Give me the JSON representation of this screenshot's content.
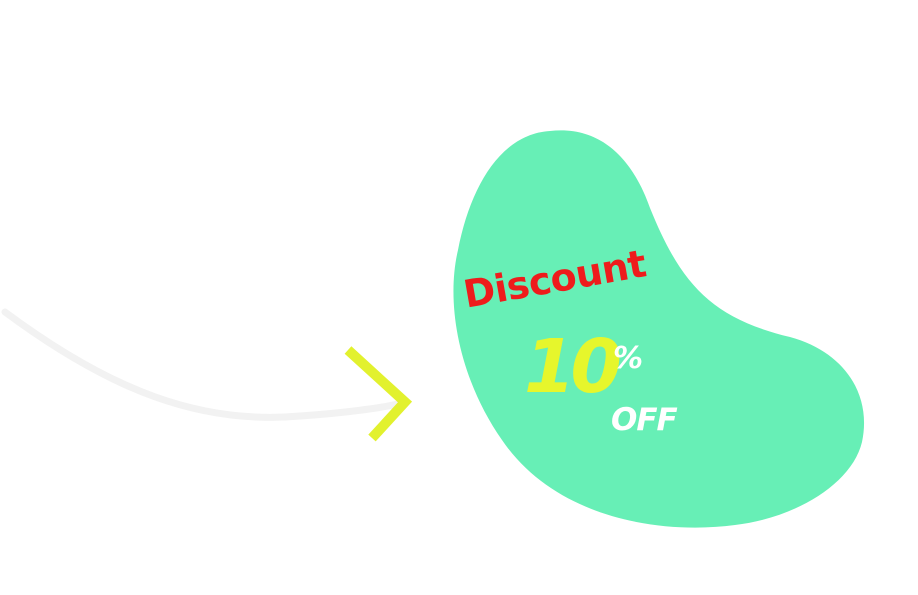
{
  "promo": {
    "headline": "Discount",
    "amount": "10",
    "percent_sign": "%",
    "suffix": "OFF"
  },
  "colors": {
    "background": "#ffffff",
    "blob": "#67efb6",
    "headline": "#ee1c1c",
    "amount": "#e6f62c",
    "suffix": "#ffffff",
    "arrow_head": "#e2f12e",
    "arrow_curve": "#f2f2f2"
  },
  "icons": {
    "arrow": "curved-arrow-right-icon"
  }
}
